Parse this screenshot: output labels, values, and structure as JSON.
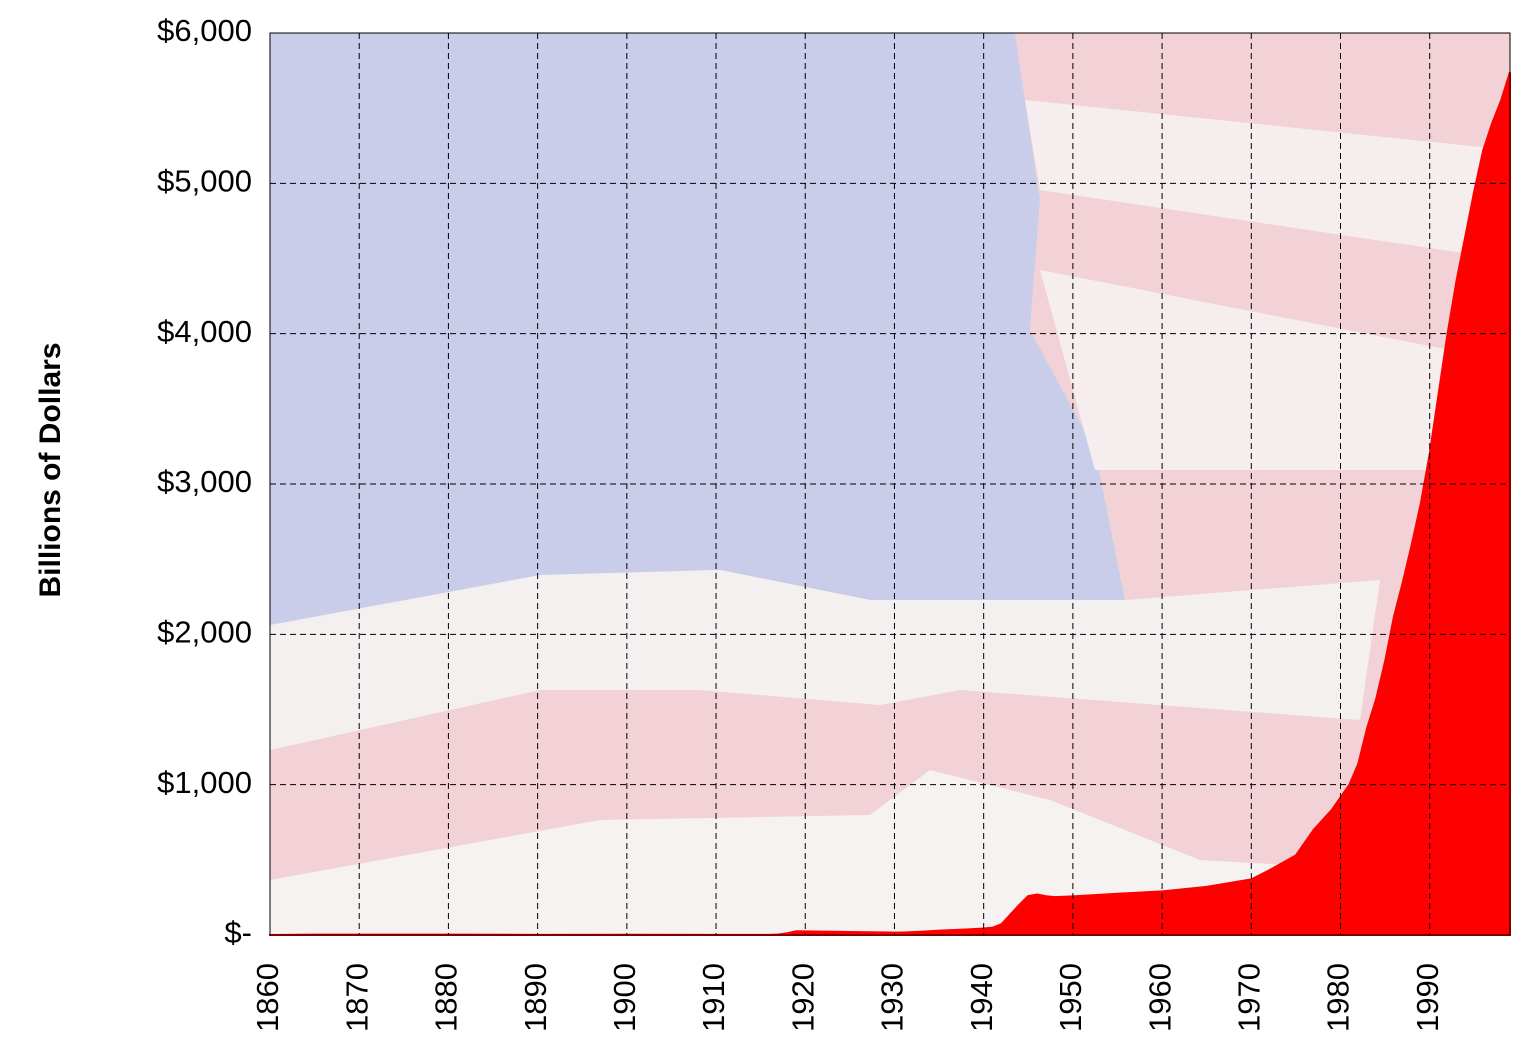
{
  "chart_data": {
    "type": "area",
    "y_label": "Billions of Dollars",
    "color": "#ff0000",
    "grid": true,
    "xlim": [
      1860,
      1999
    ],
    "xticks": [
      1860,
      1870,
      1880,
      1890,
      1900,
      1910,
      1920,
      1930,
      1940,
      1950,
      1960,
      1970,
      1980,
      1990
    ],
    "ylim": [
      0,
      6000
    ],
    "yticks": [
      {
        "value": 0,
        "label": "$-"
      },
      {
        "value": 1000,
        "label": "$1,000"
      },
      {
        "value": 2000,
        "label": "$2,000"
      },
      {
        "value": 3000,
        "label": "$3,000"
      },
      {
        "value": 4000,
        "label": "$4,000"
      },
      {
        "value": 5000,
        "label": "$5,000"
      },
      {
        "value": 6000,
        "label": "$6,000"
      }
    ],
    "x": [
      1860,
      1865,
      1870,
      1880,
      1890,
      1900,
      1910,
      1916,
      1917,
      1918,
      1919,
      1920,
      1924,
      1925,
      1930,
      1931,
      1932,
      1933,
      1935,
      1938,
      1940,
      1941,
      1942,
      1943,
      1944,
      1945,
      1946,
      1947,
      1948,
      1950,
      1955,
      1960,
      1965,
      1970,
      1972,
      1975,
      1977,
      1979,
      1981,
      1982,
      1983,
      1984,
      1985,
      1986,
      1987,
      1988,
      1989,
      1990,
      1991,
      1992,
      1993,
      1994,
      1995,
      1996,
      1997,
      1998,
      1999
    ],
    "values": [
      0.06,
      2.7,
      2.4,
      2.1,
      1.1,
      1.3,
      1.1,
      1.2,
      3,
      12,
      25,
      24,
      21,
      20,
      16,
      17,
      19,
      22,
      29,
      37,
      43,
      49,
      72,
      137,
      201,
      259,
      269,
      258,
      252,
      257,
      274,
      290,
      320,
      370,
      430,
      530,
      700,
      830,
      1000,
      1140,
      1380,
      1570,
      1820,
      2120,
      2350,
      2600,
      2870,
      3200,
      3600,
      4000,
      4350,
      4650,
      4950,
      5220,
      5400,
      5550,
      5740
    ]
  }
}
